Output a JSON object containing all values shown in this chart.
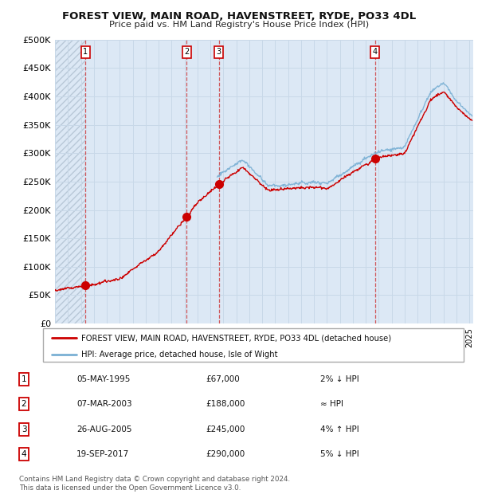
{
  "title": "FOREST VIEW, MAIN ROAD, HAVENSTREET, RYDE, PO33 4DL",
  "subtitle": "Price paid vs. HM Land Registry's House Price Index (HPI)",
  "ylim": [
    0,
    500000
  ],
  "yticks": [
    0,
    50000,
    100000,
    150000,
    200000,
    250000,
    300000,
    350000,
    400000,
    450000,
    500000
  ],
  "xlim_start": 1993.0,
  "xlim_end": 2025.3,
  "sale_dates": [
    1995.35,
    2003.18,
    2005.65,
    2017.72
  ],
  "sale_prices": [
    67000,
    188000,
    245000,
    290000
  ],
  "sale_labels": [
    "1",
    "2",
    "3",
    "4"
  ],
  "property_line_color": "#cc0000",
  "hpi_line_color": "#7ab0d4",
  "background_color": "#ffffff",
  "plot_bg_color": "#dce8f5",
  "hatch_color": "#b8c8d8",
  "grid_color": "#c8d8e8",
  "sale_marker_color": "#cc0000",
  "legend_property": "FOREST VIEW, MAIN ROAD, HAVENSTREET, RYDE, PO33 4DL (detached house)",
  "legend_hpi": "HPI: Average price, detached house, Isle of Wight",
  "table_rows": [
    [
      "1",
      "05-MAY-1995",
      "£67,000",
      "2% ↓ HPI"
    ],
    [
      "2",
      "07-MAR-2003",
      "£188,000",
      "≈ HPI"
    ],
    [
      "3",
      "26-AUG-2005",
      "£245,000",
      "4% ↑ HPI"
    ],
    [
      "4",
      "19-SEP-2017",
      "£290,000",
      "5% ↓ HPI"
    ]
  ],
  "footer": "Contains HM Land Registry data © Crown copyright and database right 2024.\nThis data is licensed under the Open Government Licence v3.0.",
  "hpi_start_year": 2005.5
}
